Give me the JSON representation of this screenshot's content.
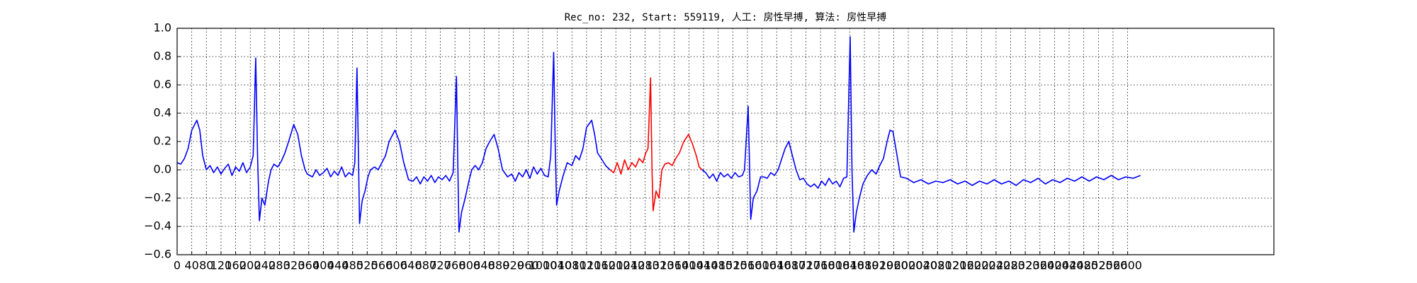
{
  "chart_data": {
    "type": "line",
    "title": "Rec_no: 232, Start: 559119, 人工: 房性早搏, 算法: 房性早搏",
    "xlim": [
      0,
      3000
    ],
    "ylim": [
      -0.6,
      1.0
    ],
    "grid": true,
    "yticks": [
      {
        "value": -0.6,
        "label": "−0.6"
      },
      {
        "value": -0.4,
        "label": "−0.4"
      },
      {
        "value": -0.2,
        "label": "−0.2"
      },
      {
        "value": 0,
        "label": "0.0"
      },
      0.2,
      0.4,
      0.6,
      0.8,
      {
        "value": 1,
        "label": "1.0"
      }
    ],
    "xticks": [
      0,
      40,
      80,
      120,
      160,
      200,
      240,
      280,
      320,
      360,
      400,
      440,
      480,
      520,
      560,
      600,
      640,
      680,
      720,
      760,
      800,
      840,
      880,
      920,
      960,
      1000,
      1040,
      1080,
      1120,
      1160,
      1200,
      1240,
      1280,
      1320,
      1360,
      1400,
      1440,
      1480,
      1520,
      1560,
      1600,
      1640,
      1680,
      1720,
      1760,
      1800,
      1840,
      1880,
      1920,
      1960,
      2000,
      2040,
      2080,
      2120,
      2160,
      2200,
      2240,
      2280,
      2320,
      2360,
      2400,
      2440,
      2480,
      2520,
      2560,
      2600
    ],
    "x": [
      0,
      10,
      20,
      30,
      40,
      54,
      62,
      70,
      80,
      90,
      100,
      110,
      120,
      130,
      140,
      150,
      160,
      170,
      180,
      190,
      200,
      208,
      215,
      220,
      225,
      232,
      240,
      250,
      257,
      265,
      275,
      285,
      295,
      305,
      319,
      330,
      340,
      350,
      356,
      370,
      380,
      390,
      400,
      410,
      420,
      430,
      440,
      450,
      460,
      470,
      480,
      486,
      492,
      496,
      499,
      506,
      514,
      522,
      529,
      540,
      550,
      560,
      570,
      580,
      596,
      608,
      620,
      633,
      645,
      655,
      665,
      675,
      685,
      695,
      705,
      715,
      725,
      735,
      745,
      755,
      764,
      768,
      771,
      778,
      788,
      798,
      806,
      815,
      825,
      835,
      845,
      855,
      867,
      878,
      890,
      904,
      915,
      925,
      935,
      945,
      955,
      965,
      975,
      985,
      995,
      1005,
      1015,
      1022,
      1030,
      1034,
      1038,
      1045,
      1055,
      1067,
      1080,
      1090,
      1100,
      1110,
      1120,
      1134,
      1142,
      1150,
      1160,
      1172,
      1184,
      1194,
      1204,
      1214,
      1224,
      1234,
      1244,
      1254,
      1264,
      1274,
      1282,
      1288,
      1295,
      1299,
      1302,
      1310,
      1318,
      1326,
      1334,
      1344,
      1354,
      1364,
      1374,
      1386,
      1399,
      1410,
      1420,
      1428,
      1436,
      1446,
      1456,
      1466,
      1476,
      1486,
      1496,
      1506,
      1516,
      1526,
      1536,
      1546,
      1552,
      1562,
      1566,
      1569,
      1576,
      1586,
      1596,
      1604,
      1614,
      1624,
      1634,
      1644,
      1654,
      1663,
      1673,
      1683,
      1693,
      1703,
      1713,
      1723,
      1733,
      1743,
      1753,
      1763,
      1773,
      1783,
      1793,
      1803,
      1813,
      1823,
      1832,
      1841,
      1846,
      1851,
      1858,
      1866,
      1876,
      1888,
      1900,
      1912,
      1922,
      1932,
      1942,
      1950,
      1958,
      1966,
      1979,
      1995,
      2015,
      2035,
      2055,
      2075,
      2095,
      2115,
      2135,
      2155,
      2175,
      2195,
      2215,
      2235,
      2255,
      2275,
      2295,
      2315,
      2335,
      2355,
      2375,
      2395,
      2415,
      2435,
      2455,
      2475,
      2495,
      2515,
      2535,
      2555,
      2575,
      2595,
      2615,
      2635
    ],
    "series": [
      {
        "color": "#0000ff",
        "values": [
          0.05,
          0.04,
          0.08,
          0.15,
          0.28,
          0.35,
          0.28,
          0.1,
          0.0,
          0.03,
          -0.02,
          0.02,
          -0.03,
          0.01,
          0.04,
          -0.04,
          0.02,
          -0.01,
          0.05,
          -0.02,
          0.02,
          0.1,
          0.79,
          0.1,
          -0.36,
          -0.2,
          -0.25,
          -0.08,
          0.0,
          0.04,
          0.02,
          0.06,
          0.12,
          0.2,
          0.32,
          0.25,
          0.1,
          0.0,
          -0.03,
          -0.05,
          0.0,
          -0.04,
          -0.02,
          0.01,
          -0.05,
          -0.01,
          -0.04,
          0.02,
          -0.05,
          -0.02,
          -0.04,
          0.05,
          0.72,
          0.1,
          -0.38,
          -0.22,
          -0.15,
          -0.05,
          0.0,
          0.02,
          0.0,
          0.05,
          0.1,
          0.2,
          0.28,
          0.2,
          0.05,
          -0.07,
          -0.08,
          -0.05,
          -0.1,
          -0.05,
          -0.08,
          -0.04,
          -0.09,
          -0.05,
          -0.07,
          -0.04,
          -0.08,
          -0.02,
          0.66,
          0.0,
          -0.44,
          -0.3,
          -0.2,
          -0.08,
          0.0,
          0.03,
          0.0,
          0.05,
          0.15,
          0.2,
          0.25,
          0.15,
          0.0,
          -0.05,
          -0.03,
          -0.08,
          -0.02,
          -0.05,
          0.0,
          -0.06,
          0.02,
          -0.03,
          0.01,
          -0.04,
          -0.05,
          0.1,
          0.83,
          0.2,
          -0.25,
          -0.15,
          -0.05,
          0.05,
          0.03,
          0.1,
          0.07,
          0.15,
          0.3,
          0.35,
          0.25,
          0.12,
          0.08,
          0.03,
          0.0,
          null,
          null,
          null,
          null,
          null,
          null,
          null,
          null,
          null,
          null,
          null,
          null,
          null,
          null,
          null,
          null,
          null,
          null,
          null,
          null,
          null,
          null,
          null,
          null,
          null,
          null,
          null,
          0.0,
          -0.02,
          -0.06,
          -0.03,
          -0.08,
          -0.02,
          -0.05,
          -0.03,
          -0.06,
          -0.02,
          -0.05,
          -0.04,
          0.0,
          0.45,
          0.0,
          -0.35,
          -0.2,
          -0.15,
          -0.05,
          -0.05,
          -0.06,
          -0.02,
          -0.04,
          0.0,
          0.08,
          0.15,
          0.2,
          0.1,
          0.0,
          -0.07,
          -0.06,
          -0.1,
          -0.12,
          -0.1,
          -0.13,
          -0.08,
          -0.11,
          -0.06,
          -0.1,
          -0.08,
          -0.12,
          -0.06,
          -0.05,
          0.94,
          0.0,
          -0.44,
          -0.3,
          -0.2,
          -0.1,
          -0.04,
          0.0,
          -0.03,
          0.03,
          0.08,
          0.2,
          0.28,
          0.27,
          0.15,
          -0.05,
          -0.06,
          -0.09,
          -0.07,
          -0.1,
          -0.08,
          -0.09,
          -0.07,
          -0.1,
          -0.08,
          -0.11,
          -0.08,
          -0.1,
          -0.07,
          -0.1,
          -0.08,
          -0.11,
          -0.07,
          -0.09,
          -0.06,
          -0.1,
          -0.07,
          -0.09,
          -0.06,
          -0.08,
          -0.05,
          -0.08,
          -0.05,
          -0.07,
          -0.04,
          -0.07,
          -0.05,
          -0.06,
          -0.04
        ]
      },
      {
        "color": "#ff0000",
        "values": [
          null,
          null,
          null,
          null,
          null,
          null,
          null,
          null,
          null,
          null,
          null,
          null,
          null,
          null,
          null,
          null,
          null,
          null,
          null,
          null,
          null,
          null,
          null,
          null,
          null,
          null,
          null,
          null,
          null,
          null,
          null,
          null,
          null,
          null,
          null,
          null,
          null,
          null,
          null,
          null,
          null,
          null,
          null,
          null,
          null,
          null,
          null,
          null,
          null,
          null,
          null,
          null,
          null,
          null,
          null,
          null,
          null,
          null,
          null,
          null,
          null,
          null,
          null,
          null,
          null,
          null,
          null,
          null,
          null,
          null,
          null,
          null,
          null,
          null,
          null,
          null,
          null,
          null,
          null,
          null,
          null,
          null,
          null,
          null,
          null,
          null,
          null,
          null,
          null,
          null,
          null,
          null,
          null,
          null,
          null,
          null,
          null,
          null,
          null,
          null,
          null,
          null,
          null,
          null,
          null,
          null,
          null,
          null,
          null,
          null,
          null,
          null,
          null,
          null,
          null,
          null,
          null,
          null,
          null,
          null,
          null,
          null,
          null,
          null,
          0.0,
          -0.02,
          0.05,
          -0.03,
          0.07,
          0.0,
          0.05,
          0.02,
          0.08,
          0.05,
          0.12,
          0.15,
          0.65,
          0.0,
          -0.29,
          -0.15,
          -0.2,
          0.0,
          0.04,
          0.05,
          0.03,
          0.08,
          0.12,
          0.2,
          0.25,
          0.18,
          0.1,
          0.02,
          0.0,
          null,
          null,
          null,
          null,
          null,
          null,
          null,
          null,
          null,
          null,
          null,
          null,
          null,
          null,
          null,
          null,
          null,
          null,
          null,
          null,
          null,
          null,
          null,
          null,
          null,
          null,
          null,
          null,
          null,
          null,
          null,
          null,
          null,
          null,
          null,
          null,
          null,
          null,
          null,
          null,
          null,
          null,
          null,
          null,
          null,
          null,
          null,
          null,
          null,
          null,
          null,
          null,
          null,
          null,
          null,
          null,
          null,
          null,
          null,
          null,
          null,
          null,
          null,
          null,
          null,
          null,
          null,
          null,
          null,
          null,
          null,
          null,
          null,
          null,
          null,
          null,
          null,
          null,
          null,
          null,
          null,
          null,
          null,
          null,
          null,
          null,
          null,
          null,
          null,
          null,
          null
        ]
      }
    ]
  }
}
